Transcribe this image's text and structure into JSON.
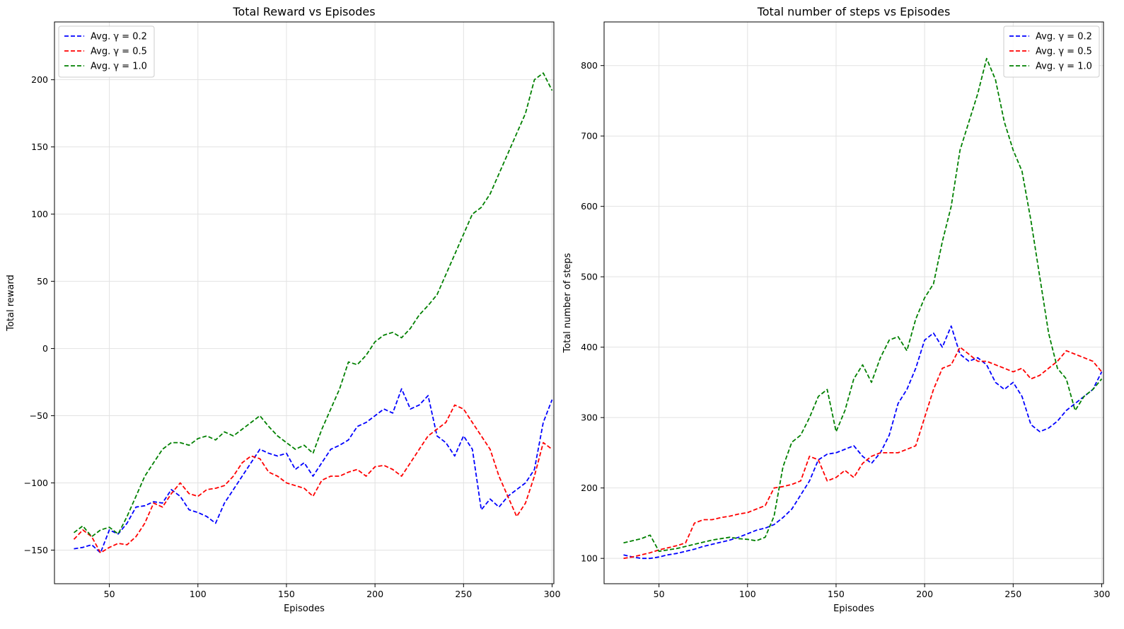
{
  "chart_data": [
    {
      "type": "line",
      "title": "Total Reward vs Episodes",
      "xlabel": "Episodes",
      "ylabel": "Total reward",
      "xlim": [
        19,
        301
      ],
      "ylim": [
        -175,
        243
      ],
      "xticks": [
        50,
        100,
        150,
        200,
        250,
        300
      ],
      "xtick_labels": [
        "50",
        "100",
        "150",
        "200",
        "250",
        "300"
      ],
      "yticks": [
        -150,
        -100,
        -50,
        0,
        50,
        100,
        150,
        200
      ],
      "ytick_labels": [
        "−150",
        "−100",
        "−50",
        "0",
        "50",
        "100",
        "150",
        "200"
      ],
      "grid": true,
      "legend_position": "top-left",
      "series": [
        {
          "name": "Avg. γ = 0.2",
          "color": "#0000ff",
          "style": "dashed",
          "x": [
            30,
            35,
            40,
            45,
            50,
            55,
            60,
            65,
            70,
            75,
            80,
            85,
            90,
            95,
            100,
            105,
            110,
            115,
            120,
            125,
            130,
            135,
            140,
            145,
            150,
            155,
            160,
            165,
            170,
            175,
            180,
            185,
            190,
            195,
            200,
            205,
            210,
            215,
            220,
            225,
            230,
            235,
            240,
            245,
            250,
            255,
            260,
            265,
            270,
            275,
            280,
            285,
            290,
            295,
            300
          ],
          "y": [
            -149,
            -148,
            -146,
            -152,
            -135,
            -138,
            -130,
            -118,
            -117,
            -114,
            -115,
            -105,
            -110,
            -120,
            -122,
            -125,
            -130,
            -115,
            -105,
            -95,
            -85,
            -75,
            -78,
            -80,
            -78,
            -90,
            -85,
            -95,
            -85,
            -75,
            -72,
            -68,
            -58,
            -55,
            -50,
            -45,
            -48,
            -30,
            -45,
            -42,
            -35,
            -65,
            -70,
            -80,
            -65,
            -75,
            -120,
            -112,
            -118,
            -110,
            -105,
            -100,
            -90,
            -55,
            -38
          ]
        },
        {
          "name": "Avg. γ = 0.5",
          "color": "#ff0000",
          "style": "dashed",
          "x": [
            30,
            35,
            40,
            45,
            50,
            55,
            60,
            65,
            70,
            75,
            80,
            85,
            90,
            95,
            100,
            105,
            110,
            115,
            120,
            125,
            130,
            135,
            140,
            145,
            150,
            155,
            160,
            165,
            170,
            175,
            180,
            185,
            190,
            195,
            200,
            205,
            210,
            215,
            220,
            225,
            230,
            235,
            240,
            245,
            250,
            255,
            260,
            265,
            270,
            275,
            280,
            285,
            290,
            295,
            300
          ],
          "y": [
            -142,
            -135,
            -140,
            -152,
            -148,
            -145,
            -146,
            -140,
            -130,
            -115,
            -118,
            -108,
            -100,
            -108,
            -110,
            -105,
            -104,
            -102,
            -95,
            -85,
            -80,
            -82,
            -92,
            -95,
            -100,
            -102,
            -104,
            -110,
            -98,
            -95,
            -95,
            -92,
            -90,
            -95,
            -88,
            -87,
            -90,
            -95,
            -85,
            -75,
            -65,
            -60,
            -55,
            -42,
            -45,
            -55,
            -65,
            -75,
            -95,
            -110,
            -125,
            -115,
            -95,
            -70,
            -75
          ]
        },
        {
          "name": "Avg. γ = 1.0",
          "color": "#008000",
          "style": "dashed",
          "x": [
            30,
            35,
            40,
            45,
            50,
            55,
            60,
            65,
            70,
            75,
            80,
            85,
            90,
            95,
            100,
            105,
            110,
            115,
            120,
            125,
            130,
            135,
            140,
            145,
            150,
            155,
            160,
            165,
            170,
            175,
            180,
            185,
            190,
            195,
            200,
            205,
            210,
            215,
            220,
            225,
            230,
            235,
            240,
            245,
            250,
            255,
            260,
            265,
            270,
            275,
            280,
            285,
            290,
            295,
            300
          ],
          "y": [
            -137,
            -132,
            -140,
            -135,
            -133,
            -138,
            -125,
            -110,
            -95,
            -85,
            -75,
            -70,
            -70,
            -72,
            -67,
            -65,
            -68,
            -62,
            -65,
            -60,
            -55,
            -50,
            -58,
            -65,
            -70,
            -75,
            -72,
            -78,
            -60,
            -45,
            -30,
            -10,
            -12,
            -5,
            5,
            10,
            12,
            8,
            15,
            25,
            32,
            40,
            55,
            70,
            85,
            100,
            105,
            115,
            130,
            145,
            160,
            175,
            200,
            205,
            192
          ]
        }
      ]
    },
    {
      "type": "line",
      "title": "Total number of steps vs Episodes",
      "xlabel": "Episodes",
      "ylabel": "Total number of steps",
      "xlim": [
        19,
        301
      ],
      "ylim": [
        64,
        862
      ],
      "xticks": [
        50,
        100,
        150,
        200,
        250,
        300
      ],
      "xtick_labels": [
        "50",
        "100",
        "150",
        "200",
        "250",
        "300"
      ],
      "yticks": [
        100,
        200,
        300,
        400,
        500,
        600,
        700,
        800
      ],
      "ytick_labels": [
        "100",
        "200",
        "300",
        "400",
        "500",
        "600",
        "700",
        "800"
      ],
      "grid": true,
      "legend_position": "top-right",
      "series": [
        {
          "name": "Avg. γ = 0.2",
          "color": "#0000ff",
          "style": "dashed",
          "x": [
            30,
            35,
            40,
            45,
            50,
            55,
            60,
            65,
            70,
            75,
            80,
            85,
            90,
            95,
            100,
            105,
            110,
            115,
            120,
            125,
            130,
            135,
            140,
            145,
            150,
            155,
            160,
            165,
            170,
            175,
            180,
            185,
            190,
            195,
            200,
            205,
            210,
            215,
            220,
            225,
            230,
            235,
            240,
            245,
            250,
            255,
            260,
            265,
            270,
            275,
            280,
            285,
            290,
            295,
            300
          ],
          "y": [
            105,
            102,
            100,
            100,
            102,
            105,
            107,
            110,
            113,
            117,
            120,
            123,
            126,
            130,
            135,
            140,
            143,
            148,
            158,
            170,
            190,
            210,
            240,
            248,
            250,
            255,
            260,
            245,
            235,
            250,
            275,
            320,
            340,
            370,
            410,
            420,
            400,
            430,
            390,
            380,
            385,
            375,
            350,
            340,
            350,
            330,
            290,
            280,
            285,
            295,
            310,
            320,
            330,
            340,
            365
          ]
        },
        {
          "name": "Avg. γ = 0.5",
          "color": "#ff0000",
          "style": "dashed",
          "x": [
            30,
            35,
            40,
            45,
            50,
            55,
            60,
            65,
            70,
            75,
            80,
            85,
            90,
            95,
            100,
            105,
            110,
            115,
            120,
            125,
            130,
            135,
            140,
            145,
            150,
            155,
            160,
            165,
            170,
            175,
            180,
            185,
            190,
            195,
            200,
            205,
            210,
            215,
            220,
            225,
            230,
            235,
            240,
            245,
            250,
            255,
            260,
            265,
            270,
            275,
            280,
            285,
            290,
            295,
            300
          ],
          "y": [
            100,
            102,
            105,
            108,
            112,
            115,
            118,
            122,
            150,
            155,
            155,
            158,
            160,
            163,
            165,
            170,
            175,
            200,
            202,
            205,
            210,
            245,
            240,
            210,
            215,
            225,
            215,
            235,
            245,
            250,
            250,
            250,
            255,
            260,
            300,
            340,
            370,
            375,
            400,
            390,
            380,
            380,
            375,
            370,
            365,
            370,
            355,
            360,
            370,
            380,
            395,
            390,
            385,
            380,
            365
          ]
        },
        {
          "name": "Avg. γ = 1.0",
          "color": "#008000",
          "style": "dashed",
          "x": [
            30,
            35,
            40,
            45,
            50,
            55,
            60,
            65,
            70,
            75,
            80,
            85,
            90,
            95,
            100,
            105,
            110,
            115,
            120,
            125,
            130,
            135,
            140,
            145,
            150,
            155,
            160,
            165,
            170,
            175,
            180,
            185,
            190,
            195,
            200,
            205,
            210,
            215,
            220,
            225,
            230,
            235,
            240,
            245,
            250,
            255,
            260,
            265,
            270,
            275,
            280,
            285,
            290,
            295,
            300
          ],
          "y": [
            122,
            125,
            128,
            133,
            110,
            112,
            114,
            117,
            120,
            123,
            126,
            128,
            130,
            128,
            127,
            125,
            130,
            160,
            230,
            265,
            275,
            300,
            330,
            340,
            280,
            310,
            355,
            375,
            350,
            385,
            410,
            415,
            395,
            440,
            470,
            490,
            550,
            600,
            680,
            720,
            760,
            810,
            780,
            720,
            680,
            650,
            580,
            500,
            420,
            370,
            355,
            310,
            330,
            340,
            355
          ]
        }
      ]
    }
  ]
}
